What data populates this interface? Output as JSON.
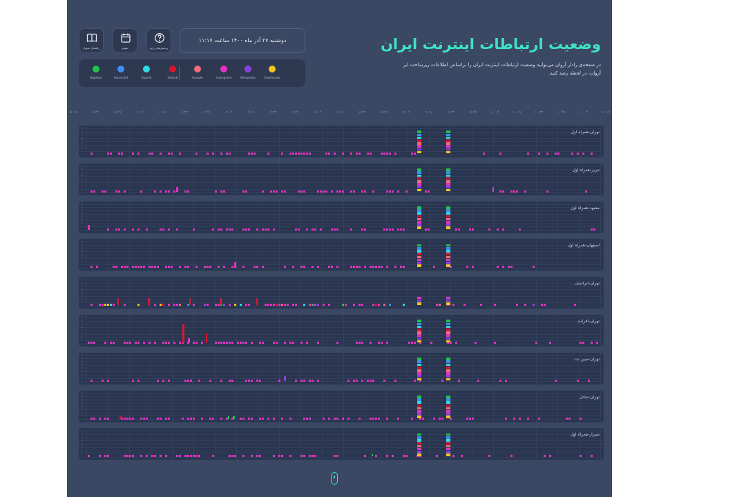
{
  "header": {
    "title": "وضعیت ارتباطات اینترنت ایران",
    "subtitle": "در صفحه‌ی رادار آروان می‌توانید وضعیت ارتباطات اینترنت ایران را براساس اطلاعات زیرساخت ابر آروان، در لحظه رصد کنید.",
    "date_label": "دوشنبه ۲۷ آذر ماه ۱۴۰۰ ساعت ۱۱:۱۷"
  },
  "toolbar": {
    "buttons": [
      {
        "label": "پرسش‌های رایج",
        "icon": "question-icon"
      },
      {
        "label": "تقویم",
        "icon": "calendar-icon"
      },
      {
        "label": "راهنمای نمودار",
        "icon": "book-icon"
      }
    ]
  },
  "legend": {
    "items": [
      {
        "name": "Clubhouse",
        "color": "#f5c518"
      },
      {
        "name": "Wikipedia",
        "color": "#8b3fe0"
      },
      {
        "name": "Instagram",
        "color": "#e532c2"
      },
      {
        "name": "Google",
        "color": "#f06c7a"
      },
      {
        "name": "Github",
        "color": "#d8172f"
      },
      {
        "name": "Aparat",
        "color": "#2fd9e6"
      },
      {
        "name": "Varzesh3",
        "color": "#3c8ff0"
      },
      {
        "name": "Digikala",
        "color": "#1ec64a"
      }
    ]
  },
  "time_axis": {
    "ticks": [
      "۱۱:۱۷",
      "۱۰:۰۲",
      "۱۰:۴۷",
      "۱۰:۳۲",
      "۱۰:۱۷",
      "۱۰:۰۲",
      "۰۹:۴۷",
      "۰۹:۳۲",
      "۰۹:۱۷",
      "۰۹:۰۲",
      "۰۸:۴۷",
      "۰۸:۳۲",
      "۰۸:۱۷",
      "۰۸:۰۲",
      "۰۷:۴۷",
      "۰۷:۳۲",
      "۰۷:۱۷",
      "۰۷:۰۲",
      "۰۶:۴۷",
      "۰۶:۳۲",
      "۰۶:۱۷",
      "۰۶:۰۲",
      "۰۵:۴۷",
      "۰۵:۳۲",
      "۰۵:۱۷"
    ]
  },
  "colors": {
    "accent": "#3ee3c4",
    "background": "#3b4863",
    "panel": "#2a3550",
    "baseline": "#e532c2"
  },
  "chart_data": {
    "type": "bar",
    "x_range": [
      "۰۵:۱۷",
      "۱۱:۱۷"
    ],
    "y_levels": [
      "۰",
      "۱",
      "۲",
      "۳",
      "۴",
      "۵",
      "۶",
      "۷",
      "۸"
    ],
    "series": [
      "Clubhouse",
      "Wikipedia",
      "Instagram",
      "Google",
      "Github",
      "Aparat",
      "Varzesh3",
      "Digikala"
    ],
    "panels": [
      {
        "label": "تهران-همراه اول",
        "spikes": [
          {
            "pos": 0.648,
            "level": 8
          },
          {
            "pos": 0.704,
            "level": 8
          }
        ],
        "extras": []
      },
      {
        "label": "تبریز-همراه اول",
        "spikes": [
          {
            "pos": 0.648,
            "level": 8
          },
          {
            "pos": 0.704,
            "level": 8
          }
        ],
        "extras": [
          {
            "pos": 0.175,
            "level": 2,
            "color": "#e532c2"
          },
          {
            "pos": 0.79,
            "level": 2,
            "color": "#e532c2"
          }
        ]
      },
      {
        "label": "مشهد-همراه اول",
        "spikes": [
          {
            "pos": 0.648,
            "level": 8
          },
          {
            "pos": 0.704,
            "level": 8
          }
        ],
        "extras": [
          {
            "pos": 0.003,
            "level": 2,
            "color": "#e532c2"
          }
        ]
      },
      {
        "label": "اصفهان-همراه اول",
        "spikes": [
          {
            "pos": 0.648,
            "level": 8
          },
          {
            "pos": 0.704,
            "level": 8
          }
        ],
        "extras": [
          {
            "pos": 0.288,
            "level": 2,
            "color": "#e532c2"
          }
        ]
      },
      {
        "label": "تهران-ایرانسل",
        "spikes": [
          {
            "pos": 0.648,
            "level": 3
          },
          {
            "pos": 0.704,
            "level": 3
          }
        ],
        "extras": [
          {
            "pos": 0.06,
            "level": 3,
            "color": "#d8172f"
          },
          {
            "pos": 0.12,
            "level": 3,
            "color": "#d8172f"
          },
          {
            "pos": 0.2,
            "level": 3,
            "color": "#d8172f"
          },
          {
            "pos": 0.26,
            "level": 3,
            "color": "#d8172f"
          },
          {
            "pos": 0.33,
            "level": 3,
            "color": "#d8172f"
          }
        ]
      },
      {
        "label": "تهران-افرانت",
        "spikes": [
          {
            "pos": 0.648,
            "level": 8
          },
          {
            "pos": 0.704,
            "level": 8
          }
        ],
        "extras": [
          {
            "pos": 0.187,
            "level": 8,
            "color": "#d8172f"
          },
          {
            "pos": 0.232,
            "level": 4,
            "color": "#d8172f"
          },
          {
            "pos": 0.198,
            "level": 2,
            "color": "#e532c2"
          }
        ]
      },
      {
        "label": "تهران-مبین نت",
        "spikes": [
          {
            "pos": 0.648,
            "level": 8
          },
          {
            "pos": 0.704,
            "level": 8
          }
        ],
        "extras": [
          {
            "pos": 0.385,
            "level": 2,
            "color": "#8b3fe0"
          }
        ]
      },
      {
        "label": "تهران-شاتل",
        "spikes": [
          {
            "pos": 0.648,
            "level": 8
          },
          {
            "pos": 0.704,
            "level": 8
          }
        ],
        "extras": [
          {
            "pos": 0.065,
            "level": 1,
            "color": "#d8172f"
          },
          {
            "pos": 0.275,
            "level": 1,
            "color": "#1ec64a"
          },
          {
            "pos": 0.285,
            "level": 1,
            "color": "#1ec64a"
          }
        ]
      },
      {
        "label": "شیراز-همراه اول",
        "spikes": [
          {
            "pos": 0.648,
            "level": 8
          },
          {
            "pos": 0.704,
            "level": 8
          }
        ],
        "extras": [
          {
            "pos": 0.555,
            "level": 1,
            "color": "#1ec64a"
          }
        ]
      }
    ]
  }
}
